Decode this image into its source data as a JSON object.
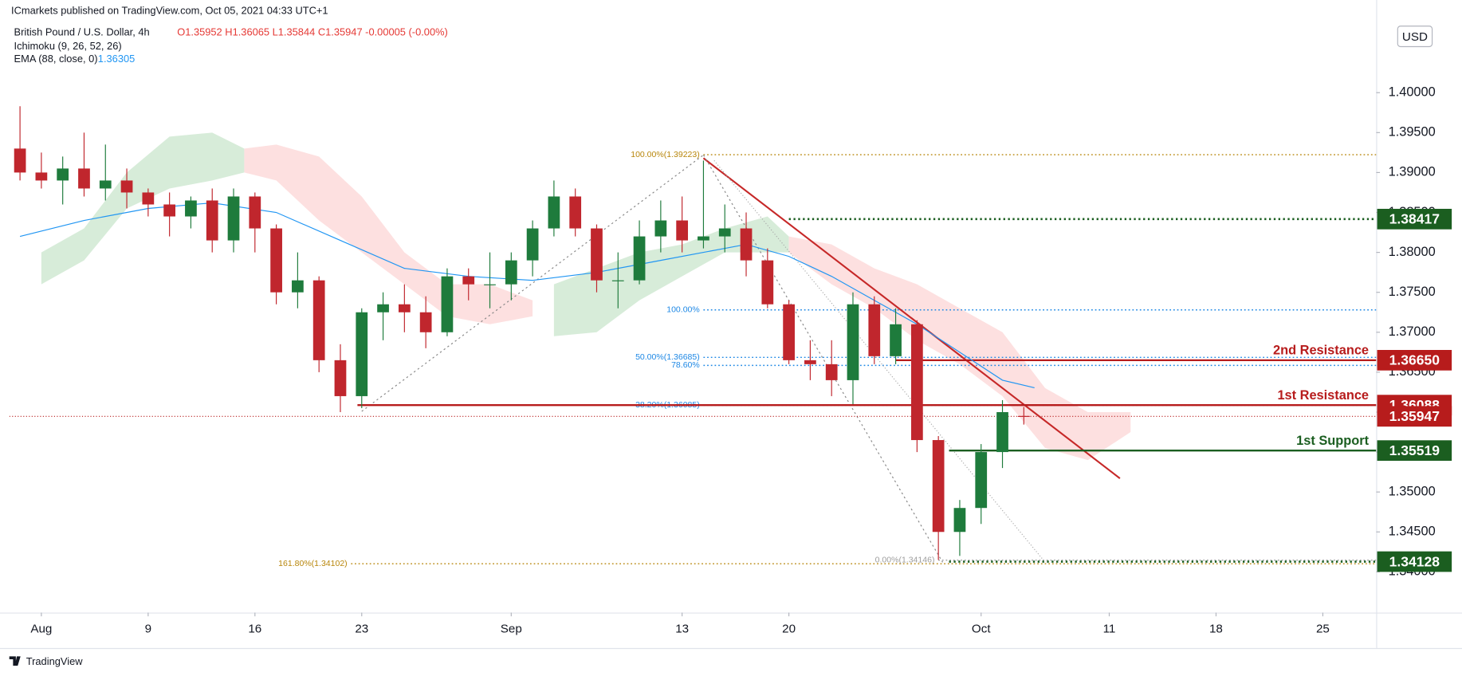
{
  "chart_data": {
    "type": "candlestick",
    "published": "ICmarkets published on TradingView.com, Oct 05, 2021 04:33 UTC+1",
    "title": "British Pound / U.S. Dollar, 4h",
    "ohlc_text": "O1.35952 H1.36065 L1.35844 C1.35947 -0.00005 (-0.00%)",
    "indicators": [
      {
        "label": "Ichimoku (9, 26, 52, 26)"
      },
      {
        "label": "EMA (88, close, 0)",
        "value": 1.36305,
        "color": "#2196f3"
      }
    ],
    "currency": "USD",
    "brand": "TradingView",
    "up_color": "#1e7b3c",
    "down_color": "#c0262d",
    "xlim": [
      -1.5,
      62.5
    ],
    "ylim": [
      1.3349,
      1.4116
    ],
    "xticks": [
      {
        "value": 0,
        "label": "Aug"
      },
      {
        "value": 5,
        "label": "9"
      },
      {
        "value": 10,
        "label": "16"
      },
      {
        "value": 15,
        "label": "23"
      },
      {
        "value": 22,
        "label": "Sep"
      },
      {
        "value": 30,
        "label": "13"
      },
      {
        "value": 35,
        "label": "20"
      },
      {
        "value": 44,
        "label": "Oct"
      },
      {
        "value": 50,
        "label": "11"
      },
      {
        "value": 55,
        "label": "18"
      },
      {
        "value": 60,
        "label": "25"
      }
    ],
    "yticks": [
      {
        "value": 1.34,
        "label": "1.34000"
      },
      {
        "value": 1.345,
        "label": "1.34500"
      },
      {
        "value": 1.35,
        "label": "1.35000"
      },
      {
        "value": 1.355,
        "label": "1.35500"
      },
      {
        "value": 1.36,
        "label": "1.36000"
      },
      {
        "value": 1.365,
        "label": "1.36500"
      },
      {
        "value": 1.37,
        "label": "1.37000"
      },
      {
        "value": 1.375,
        "label": "1.37500"
      },
      {
        "value": 1.38,
        "label": "1.38000"
      },
      {
        "value": 1.385,
        "label": "1.38500"
      },
      {
        "value": 1.39,
        "label": "1.39000"
      },
      {
        "value": 1.395,
        "label": "1.39500"
      },
      {
        "value": 1.4,
        "label": "1.40000"
      }
    ],
    "x": [
      -1,
      0,
      1,
      2,
      3,
      4,
      5,
      6,
      7,
      8,
      9,
      10,
      11,
      12,
      13,
      14,
      15,
      16,
      17,
      18,
      19,
      20,
      21,
      22,
      23,
      24,
      25,
      26,
      27,
      28,
      29,
      30,
      31,
      32,
      33,
      34,
      35,
      36,
      37,
      38,
      39,
      40,
      41,
      42,
      43,
      44,
      45,
      46
    ],
    "open": [
      1.393,
      1.39,
      1.389,
      1.3905,
      1.388,
      1.389,
      1.3875,
      1.386,
      1.3845,
      1.3865,
      1.3815,
      1.387,
      1.383,
      1.375,
      1.3765,
      1.3665,
      1.362,
      1.3725,
      1.3735,
      1.3725,
      1.37,
      1.377,
      1.376,
      1.376,
      1.379,
      1.383,
      1.387,
      1.383,
      1.3765,
      1.3765,
      1.382,
      1.384,
      1.3815,
      1.382,
      1.383,
      1.379,
      1.3735,
      1.3665,
      1.366,
      1.364,
      1.3735,
      1.367,
      1.371,
      1.3565,
      1.345,
      1.348,
      1.355,
      1.35952
    ],
    "high": [
      1.3983,
      1.3925,
      1.392,
      1.395,
      1.3935,
      1.3905,
      1.388,
      1.3875,
      1.387,
      1.388,
      1.388,
      1.3875,
      1.3835,
      1.38,
      1.377,
      1.3685,
      1.373,
      1.375,
      1.376,
      1.3745,
      1.378,
      1.378,
      1.38,
      1.38,
      1.384,
      1.389,
      1.388,
      1.3835,
      1.38,
      1.384,
      1.3865,
      1.387,
      1.3915,
      1.386,
      1.385,
      1.3805,
      1.374,
      1.369,
      1.369,
      1.375,
      1.3745,
      1.373,
      1.3715,
      1.357,
      1.349,
      1.356,
      1.3615,
      1.36065
    ],
    "low": [
      1.389,
      1.388,
      1.386,
      1.387,
      1.3865,
      1.3855,
      1.3845,
      1.382,
      1.383,
      1.38,
      1.38,
      1.38,
      1.3735,
      1.373,
      1.365,
      1.36,
      1.3605,
      1.369,
      1.37,
      1.368,
      1.3695,
      1.374,
      1.373,
      1.374,
      1.377,
      1.382,
      1.382,
      1.375,
      1.373,
      1.376,
      1.38,
      1.38,
      1.3805,
      1.38,
      1.377,
      1.373,
      1.366,
      1.364,
      1.362,
      1.361,
      1.366,
      1.366,
      1.355,
      1.3415,
      1.342,
      1.346,
      1.353,
      1.35844
    ],
    "close": [
      1.39,
      1.389,
      1.3905,
      1.388,
      1.389,
      1.3875,
      1.386,
      1.3845,
      1.3865,
      1.3815,
      1.387,
      1.383,
      1.375,
      1.3765,
      1.3665,
      1.362,
      1.3725,
      1.3735,
      1.3725,
      1.37,
      1.377,
      1.376,
      1.376,
      1.379,
      1.383,
      1.387,
      1.383,
      1.3765,
      1.3765,
      1.382,
      1.384,
      1.3815,
      1.382,
      1.383,
      1.379,
      1.3735,
      1.3665,
      1.366,
      1.364,
      1.3735,
      1.367,
      1.371,
      1.3565,
      1.345,
      1.348,
      1.355,
      1.36,
      1.35947
    ],
    "ema": {
      "x": [
        -1,
        2,
        5,
        8,
        11,
        14,
        17,
        20,
        23,
        26,
        29,
        31,
        33,
        35,
        37,
        39,
        41,
        43,
        45,
        46.5
      ],
      "values": [
        1.382,
        1.384,
        1.3855,
        1.3862,
        1.385,
        1.3815,
        1.378,
        1.377,
        1.3765,
        1.3775,
        1.379,
        1.38,
        1.381,
        1.3795,
        1.377,
        1.374,
        1.371,
        1.3675,
        1.364,
        1.36305
      ]
    },
    "cloud": [
      {
        "color": "#d7ecd9",
        "x": [
          0,
          2,
          4,
          6,
          8,
          9.5
        ],
        "upper": [
          1.38,
          1.383,
          1.39,
          1.3945,
          1.395,
          1.393
        ],
        "lower": [
          1.376,
          1.379,
          1.3855,
          1.388,
          1.389,
          1.39
        ]
      },
      {
        "color": "#fde0e0",
        "x": [
          9.5,
          11,
          13,
          15,
          17,
          19,
          21,
          23
        ],
        "upper": [
          1.393,
          1.3935,
          1.392,
          1.387,
          1.38,
          1.376,
          1.376,
          1.374
        ],
        "lower": [
          1.39,
          1.389,
          1.384,
          1.38,
          1.376,
          1.372,
          1.371,
          1.372
        ]
      },
      {
        "color": "#d7ecd9",
        "x": [
          24,
          26,
          28,
          30,
          32,
          34,
          35
        ],
        "upper": [
          1.376,
          1.378,
          1.38,
          1.381,
          1.383,
          1.3845,
          1.382
        ],
        "lower": [
          1.3695,
          1.37,
          1.374,
          1.377,
          1.38,
          1.38,
          1.38
        ]
      },
      {
        "color": "#fde0e0",
        "x": [
          35,
          37,
          39,
          41,
          43,
          45,
          47,
          49,
          51
        ],
        "upper": [
          1.382,
          1.381,
          1.378,
          1.376,
          1.373,
          1.37,
          1.363,
          1.36,
          1.36
        ],
        "lower": [
          1.38,
          1.376,
          1.373,
          1.369,
          1.366,
          1.362,
          1.3555,
          1.354,
          1.3575
        ]
      }
    ],
    "trendlines": [
      {
        "color": "#c62828",
        "dash": "none",
        "x": [
          31,
          50.5
        ],
        "y": [
          1.3918,
          1.3517
        ]
      },
      {
        "color": "#888888",
        "dash": "2,3",
        "x": [
          15,
          31
        ],
        "y": [
          1.3601,
          1.3922
        ]
      },
      {
        "color": "#888888",
        "dash": "2,3",
        "x": [
          31,
          42.2
        ],
        "y": [
          1.3922,
          1.3412
        ]
      },
      {
        "color": "#aaaaaa",
        "dash": "1,2",
        "x": [
          31.5,
          47
        ],
        "y": [
          1.3915,
          1.3412
        ]
      }
    ],
    "fib": [
      {
        "value": 1.39223,
        "label": "100.00%(1.39223)",
        "color": "#b8860b",
        "x0": 31
      },
      {
        "value": 1.3728,
        "label": "100.00%",
        "color": "#1e88e5",
        "x0": 31
      },
      {
        "value": 1.36685,
        "label": "50.00%(1.36685)",
        "color": "#1e88e5",
        "x0": 31
      },
      {
        "value": 1.36585,
        "label": "78.60%",
        "color": "#1e88e5",
        "x0": 31
      },
      {
        "value": 1.36085,
        "label": "38.20%(1.36085)",
        "color": "#1e88e5",
        "x0": 31
      },
      {
        "value": 1.34102,
        "label": "161.80%(1.34102)",
        "color": "#b8860b",
        "x0": 14.5
      },
      {
        "value": 1.34146,
        "label": "0.00%(1.34146)",
        "color": "#9e9e9e",
        "x0": 42
      }
    ],
    "levels": [
      {
        "value": 1.38417,
        "label": "1.38417",
        "color": "#1b5e20",
        "style": "dotted",
        "x0": 35
      },
      {
        "name": "2nd Resistance",
        "value": 1.3665,
        "label": "1.36650",
        "color": "#b71c1c",
        "style": "solid",
        "x0": 40
      },
      {
        "name": "1st Resistance",
        "value": 1.36088,
        "label": "1.36088",
        "color": "#b71c1c",
        "style": "solid",
        "x0": 14.8
      },
      {
        "value": 1.35947,
        "label": "1.35947",
        "color": "#b71c1c",
        "style": "dotted",
        "x0": -1.5
      },
      {
        "name": "1st Support",
        "value": 1.35519,
        "label": "1.35519",
        "color": "#1b5e20",
        "style": "solid",
        "x0": 42.5
      },
      {
        "value": 1.34128,
        "label": "1.34128",
        "color": "#1b5e20",
        "style": "dotted",
        "x0": 42.5
      }
    ]
  }
}
